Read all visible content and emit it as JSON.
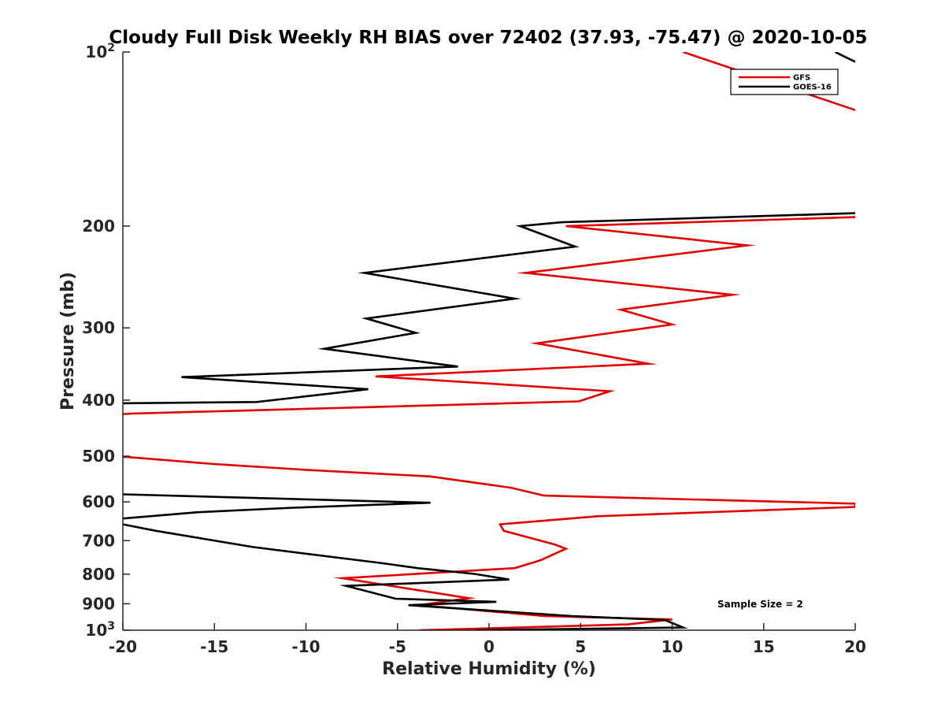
{
  "chart_data": {
    "type": "line",
    "title": "Cloudy Full Disk Weekly RH BIAS over 72402 (37.93, -75.47) @ 2020-10-05",
    "xlabel": "Relative Humidity (%)",
    "ylabel": "Pressure (mb)",
    "xlim": [
      -20,
      20
    ],
    "ylim": [
      100,
      1000
    ],
    "yscale": "log",
    "yreversed": true,
    "grid": false,
    "legend_position": "top-right",
    "x_ticks": [
      "-20",
      "-15",
      "-10",
      "-5",
      "0",
      "5",
      "10",
      "15",
      "20"
    ],
    "y_ticks": [
      {
        "value": 100,
        "base": "10",
        "exp": "2"
      },
      {
        "value": 200,
        "label": "200"
      },
      {
        "value": 300,
        "label": "300"
      },
      {
        "value": 400,
        "label": "400"
      },
      {
        "value": 500,
        "label": "500"
      },
      {
        "value": 600,
        "label": "600"
      },
      {
        "value": 700,
        "label": "700"
      },
      {
        "value": 800,
        "label": "800"
      },
      {
        "value": 900,
        "label": "900"
      },
      {
        "value": 1000,
        "base": "10",
        "exp": "3"
      }
    ],
    "annotation": "Sample Size = 2",
    "series": [
      {
        "name": "GFS",
        "color": "#e00000",
        "segments": [
          [
            [
              10.6,
              100
            ],
            [
              20,
              126
            ]
          ],
          [
            [
              20,
              193
            ],
            [
              4.2,
              200
            ],
            [
              14.1,
              216
            ],
            [
              2.0,
              241
            ],
            [
              13.3,
              263
            ],
            [
              7.2,
              279
            ],
            [
              10.0,
              296
            ],
            [
              2.6,
              319
            ],
            [
              8.7,
              346
            ],
            [
              -6.2,
              364
            ],
            [
              6.6,
              386
            ],
            [
              4.9,
              402
            ],
            [
              -19.5,
              422
            ],
            [
              -20,
              423
            ]
          ],
          [
            [
              -20,
              501
            ],
            [
              -15,
              516
            ],
            [
              -10,
              528
            ],
            [
              -3.2,
              542
            ],
            [
              1.2,
              567
            ],
            [
              3.0,
              585
            ],
            [
              20,
              604
            ],
            [
              20,
              612
            ],
            [
              6.0,
              635
            ],
            [
              0.6,
              656
            ],
            [
              0.8,
              673
            ],
            [
              3.6,
              711
            ],
            [
              4.2,
              723
            ],
            [
              2.8,
              757
            ],
            [
              1.4,
              781
            ],
            [
              -8.0,
              813
            ],
            [
              -1.1,
              880
            ],
            [
              -3.8,
              905
            ],
            [
              3.0,
              945
            ],
            [
              10.0,
              958
            ],
            [
              7.6,
              977
            ],
            [
              -3.8,
              1000
            ]
          ]
        ]
      },
      {
        "name": "GOES-16",
        "color": "#000000",
        "segments": [
          [
            [
              18.9,
              100
            ],
            [
              20,
              104
            ]
          ],
          [
            [
              20,
              190
            ],
            [
              4.0,
              197
            ],
            [
              1.7,
              200
            ],
            [
              4.7,
              217
            ],
            [
              -6.8,
              241
            ],
            [
              1.4,
              267
            ],
            [
              -6.7,
              289
            ],
            [
              -4.0,
              306
            ],
            [
              -9.0,
              326
            ],
            [
              -1.7,
              350
            ],
            [
              -16.8,
              365
            ],
            [
              -6.6,
              383
            ],
            [
              -12.7,
              403
            ],
            [
              -20,
              405
            ]
          ],
          [
            [
              -20,
              582
            ],
            [
              -3.2,
              602
            ],
            [
              -10.7,
              614
            ],
            [
              -15.9,
              625
            ],
            [
              -20,
              641
            ]
          ],
          [
            [
              -20,
              656
            ],
            [
              -18.2,
              673
            ],
            [
              -12.9,
              718
            ],
            [
              -5.8,
              766
            ],
            [
              -3.9,
              781
            ],
            [
              -0.8,
              799
            ],
            [
              1.1,
              817
            ],
            [
              -7.8,
              838
            ],
            [
              -5.1,
              882
            ],
            [
              0.4,
              893
            ],
            [
              -4.4,
              905
            ],
            [
              4.5,
              945
            ],
            [
              9.6,
              960
            ],
            [
              10.6,
              989
            ],
            [
              -0.8,
              1000
            ]
          ]
        ]
      }
    ]
  }
}
